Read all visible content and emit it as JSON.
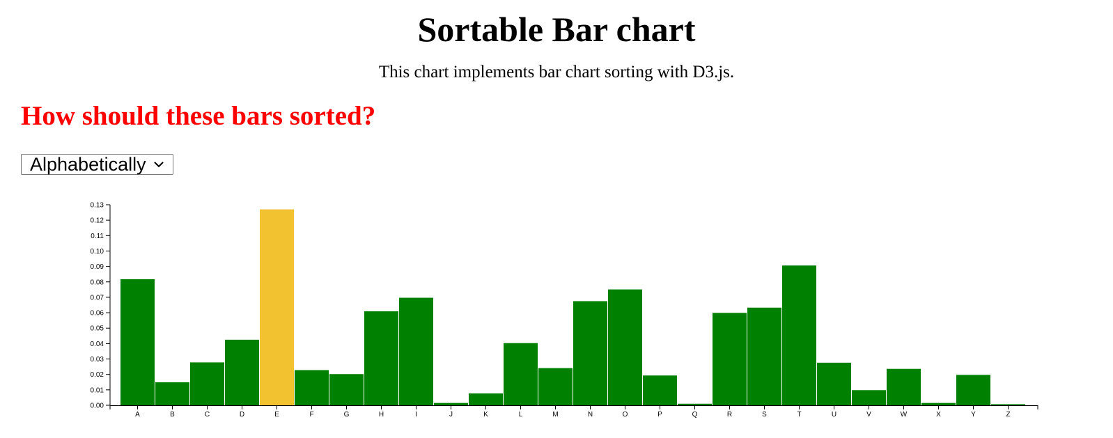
{
  "header": {
    "title": "Sortable Bar chart",
    "subtitle": "This chart implements bar chart sorting with D3.js."
  },
  "controls": {
    "question": "How should these bars sorted?",
    "sort_select": {
      "selected": "Alphabetically",
      "icon": "chevron-down-icon"
    }
  },
  "colors": {
    "bar": "#008000",
    "highlight_bar": "#f2c230",
    "question": "#ff0000"
  },
  "chart_data": {
    "type": "bar",
    "categories": [
      "A",
      "B",
      "C",
      "D",
      "E",
      "F",
      "G",
      "H",
      "I",
      "J",
      "K",
      "L",
      "M",
      "N",
      "O",
      "P",
      "Q",
      "R",
      "S",
      "T",
      "U",
      "V",
      "W",
      "X",
      "Y",
      "Z"
    ],
    "values": [
      0.0817,
      0.0149,
      0.0278,
      0.0425,
      0.127,
      0.0228,
      0.0202,
      0.0609,
      0.0697,
      0.0015,
      0.0077,
      0.0403,
      0.0241,
      0.0675,
      0.0751,
      0.0193,
      0.001,
      0.0599,
      0.0633,
      0.0906,
      0.0276,
      0.0098,
      0.0236,
      0.0015,
      0.0197,
      0.0007
    ],
    "highlighted_category": "E",
    "ylim": [
      0,
      0.13
    ],
    "yticks": [
      "0.00",
      "0.01",
      "0.02",
      "0.03",
      "0.04",
      "0.05",
      "0.06",
      "0.07",
      "0.08",
      "0.09",
      "0.10",
      "0.11",
      "0.12",
      "0.13"
    ],
    "title": "",
    "xlabel": "",
    "ylabel": "",
    "grid": false
  }
}
